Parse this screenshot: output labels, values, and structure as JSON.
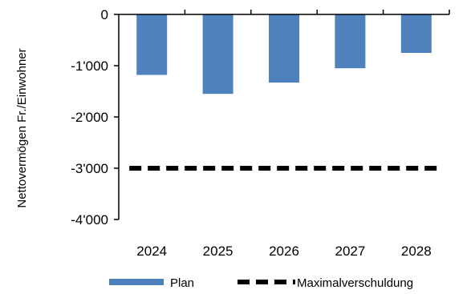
{
  "chart_data": {
    "type": "bar",
    "categories": [
      "2024",
      "2025",
      "2026",
      "2027",
      "2028"
    ],
    "series": [
      {
        "name": "Plan",
        "kind": "bar",
        "color": "#4f81bd",
        "values": [
          -1180,
          -1550,
          -1330,
          -1050,
          -750
        ]
      },
      {
        "name": "Maximalverschuldung",
        "kind": "line",
        "style": "dashed",
        "color": "#000000",
        "values": [
          -3000,
          -3000,
          -3000,
          -3000,
          -3000
        ]
      }
    ],
    "ylabel": "Nettovermögen Fr./Einwohner",
    "ylim": [
      -4000,
      0
    ],
    "yticks": [
      0,
      -1000,
      -2000,
      -3000,
      -4000
    ],
    "ytick_labels": [
      "0",
      "-1'000",
      "-2'000",
      "-3'000",
      "-4'000"
    ],
    "legend_position": "bottom",
    "grid": false
  }
}
